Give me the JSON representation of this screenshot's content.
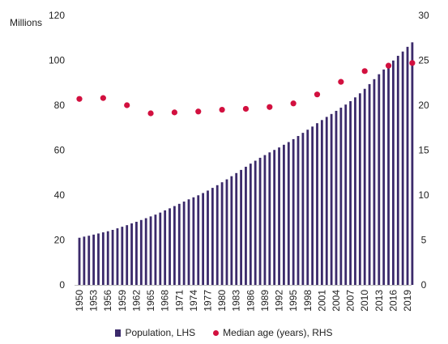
{
  "chart_data": {
    "type": "bar",
    "left_axis": {
      "label": "Millions",
      "ylim": [
        0,
        120
      ],
      "ticks": [
        0,
        20,
        40,
        60,
        80,
        100,
        120
      ]
    },
    "right_axis": {
      "ylim": [
        0,
        30
      ],
      "ticks": [
        0,
        5,
        10,
        15,
        20,
        25,
        30
      ]
    },
    "x_tick_labels": [
      "1950",
      "1953",
      "1956",
      "1959",
      "1962",
      "1965",
      "1968",
      "1971",
      "1974",
      "1977",
      "1980",
      "1983",
      "1986",
      "1989",
      "1992",
      "1995",
      "1998",
      "2001",
      "2004",
      "2007",
      "2010",
      "2013",
      "2016",
      "2019"
    ],
    "grid": false,
    "legend_position": "bottom",
    "series": [
      {
        "name": "Population, LHS",
        "type": "bar",
        "axis": "left",
        "color": "#3b2a6b",
        "x": [
          1950,
          1951,
          1952,
          1953,
          1954,
          1955,
          1956,
          1957,
          1958,
          1959,
          1960,
          1961,
          1962,
          1963,
          1964,
          1965,
          1966,
          1967,
          1968,
          1969,
          1970,
          1971,
          1972,
          1973,
          1974,
          1975,
          1976,
          1977,
          1978,
          1979,
          1980,
          1981,
          1982,
          1983,
          1984,
          1985,
          1986,
          1987,
          1988,
          1989,
          1990,
          1991,
          1992,
          1993,
          1994,
          1995,
          1996,
          1997,
          1998,
          1999,
          2000,
          2001,
          2002,
          2003,
          2004,
          2005,
          2006,
          2007,
          2008,
          2009,
          2010,
          2011,
          2012,
          2013,
          2014,
          2015,
          2016,
          2017,
          2018,
          2019,
          2020
        ],
        "values": [
          21.0,
          21.5,
          21.9,
          22.4,
          22.9,
          23.4,
          23.9,
          24.5,
          25.2,
          25.9,
          26.6,
          27.4,
          28.1,
          28.9,
          29.7,
          30.5,
          31.3,
          32.2,
          33.2,
          34.1,
          35.1,
          36.1,
          37.1,
          38.1,
          39.0,
          39.9,
          40.9,
          42.0,
          43.2,
          44.4,
          45.7,
          47.0,
          48.4,
          49.8,
          51.2,
          52.6,
          54.0,
          55.3,
          56.6,
          57.8,
          59.0,
          60.1,
          61.2,
          62.4,
          63.6,
          64.9,
          66.3,
          67.7,
          69.1,
          70.5,
          72.0,
          73.4,
          74.8,
          76.1,
          77.5,
          78.9,
          80.3,
          81.8,
          83.5,
          85.3,
          87.3,
          89.4,
          91.6,
          93.8,
          95.9,
          97.9,
          99.9,
          102.0,
          103.9,
          106.0,
          108.0
        ]
      },
      {
        "name": "Median age (years), RHS",
        "type": "scatter",
        "axis": "right",
        "color": "#d2103f",
        "x": [
          1950,
          1955,
          1960,
          1965,
          1970,
          1975,
          1980,
          1985,
          1990,
          1995,
          2000,
          2005,
          2010,
          2015,
          2020
        ],
        "values": [
          20.7,
          20.8,
          20.0,
          19.1,
          19.2,
          19.3,
          19.5,
          19.6,
          19.8,
          20.2,
          21.2,
          22.6,
          23.8,
          24.4,
          24.7
        ]
      }
    ]
  }
}
